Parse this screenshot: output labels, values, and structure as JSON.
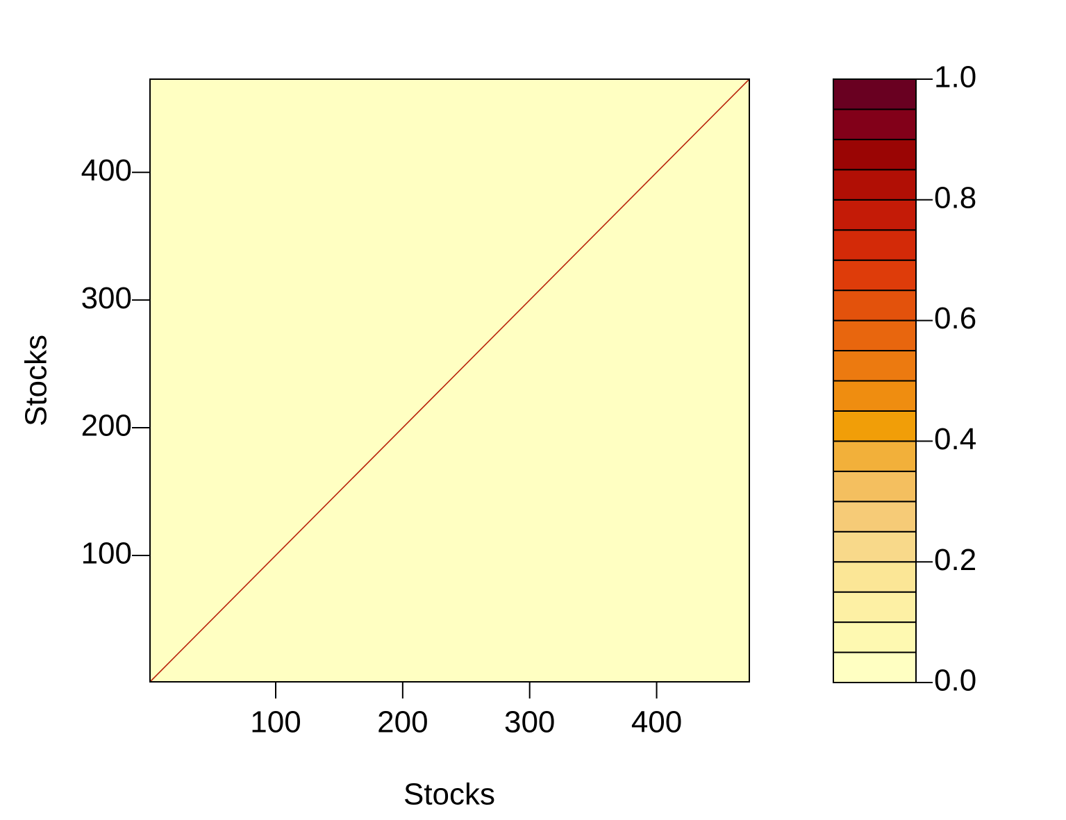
{
  "chart_data": {
    "type": "heatmap",
    "x_label": "Stocks",
    "y_label": "Stocks",
    "xlim": [
      1,
      473
    ],
    "ylim": [
      1,
      473
    ],
    "xticks": [
      100,
      200,
      300,
      400
    ],
    "yticks": [
      100,
      200,
      300,
      400
    ],
    "background_value": 0.02,
    "diagonal": {
      "x": [
        1,
        473
      ],
      "y": [
        1,
        473
      ],
      "value": 1
    },
    "colorbar": {
      "breaks": [
        0,
        0.05,
        0.1,
        0.15,
        0.2,
        0.25,
        0.3,
        0.35,
        0.4,
        0.45,
        0.5,
        0.55,
        0.6,
        0.65,
        0.7,
        0.75,
        0.8,
        0.85,
        0.9,
        0.95,
        1
      ],
      "colors": [
        "#FFFFC2",
        "#FEF9B1",
        "#FDF0A4",
        "#FBE696",
        "#F8D98A",
        "#F6CB77",
        "#F4BF5F",
        "#F2B03A",
        "#F19E08",
        "#EF8D10",
        "#EC7A10",
        "#E8660E",
        "#E3520C",
        "#DE3C0A",
        "#D32A08",
        "#C41B07",
        "#B10F05",
        "#9A0504",
        "#820019",
        "#690021"
      ],
      "ticks": [
        {
          "value": 0,
          "label": "0.0"
        },
        0.2,
        0.4,
        0.6,
        0.8,
        {
          "value": 1,
          "label": "1.0"
        }
      ]
    }
  }
}
